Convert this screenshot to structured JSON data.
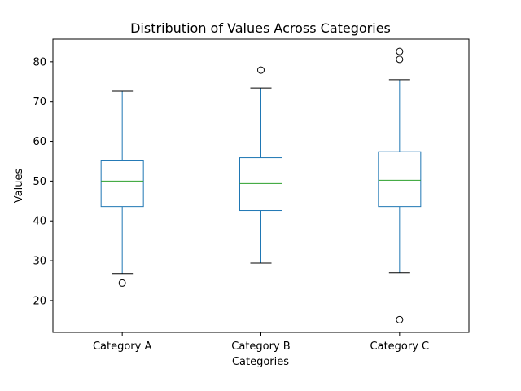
{
  "chart_data": {
    "type": "box",
    "title": "Distribution of Values Across Categories",
    "xlabel": "Categories",
    "ylabel": "Values",
    "ylim": [
      12.0,
      85.7
    ],
    "yticks": [
      20,
      30,
      40,
      50,
      60,
      70,
      80
    ],
    "grid": false,
    "categories": [
      "Category A",
      "Category B",
      "Category C"
    ],
    "boxes": [
      {
        "whisker_low": 26.8,
        "q1": 43.6,
        "median": 50.0,
        "q3": 55.1,
        "whisker_high": 72.6,
        "outliers": [
          24.4
        ]
      },
      {
        "whisker_low": 29.4,
        "q1": 42.6,
        "median": 49.4,
        "q3": 55.9,
        "whisker_high": 73.4,
        "outliers": [
          77.9
        ]
      },
      {
        "whisker_low": 27.0,
        "q1": 43.6,
        "median": 50.2,
        "q3": 57.4,
        "whisker_high": 75.5,
        "outliers": [
          82.6,
          80.6,
          15.2
        ]
      }
    ],
    "colors": {
      "box": "#1f77b4",
      "median": "#2ca02c",
      "whisker_cap": "#000000",
      "outlier": "#000000"
    }
  }
}
